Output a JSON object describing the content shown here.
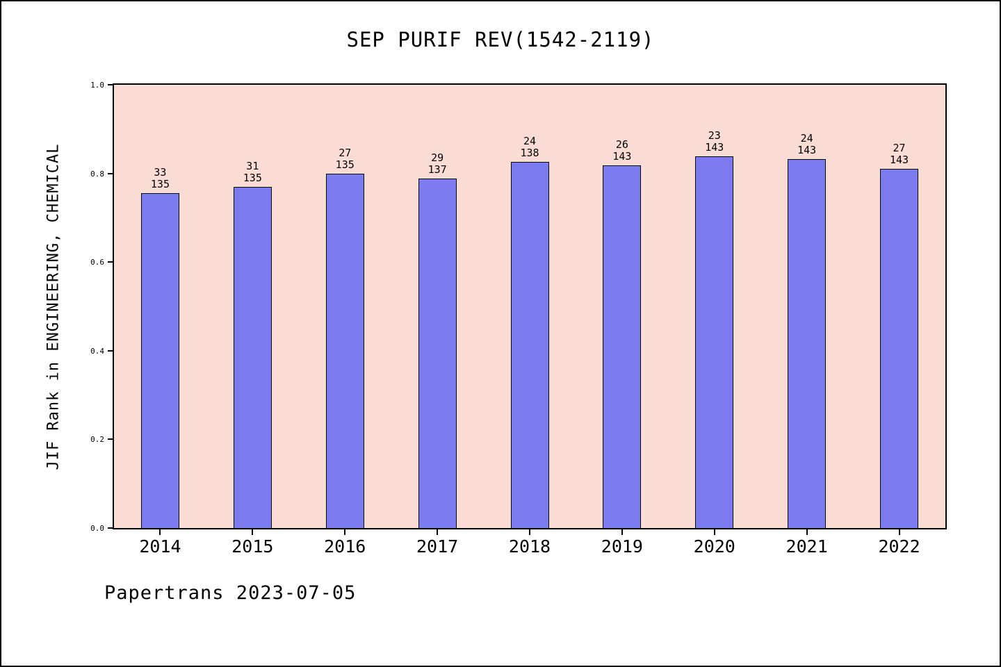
{
  "title": "SEP PURIF REV(1542-2119)",
  "footer": "Papertrans 2023-07-05",
  "chart_data": {
    "type": "bar",
    "title": "SEP PURIF REV(1542-2119)",
    "xlabel": "",
    "ylabel": "JIF Rank in ENGINEERING, CHEMICAL",
    "categories": [
      "2014",
      "2015",
      "2016",
      "2017",
      "2018",
      "2019",
      "2020",
      "2021",
      "2022"
    ],
    "values": [
      0.756,
      0.77,
      0.8,
      0.788,
      0.826,
      0.818,
      0.839,
      0.832,
      0.811
    ],
    "bar_labels": [
      {
        "rank": "33",
        "total": "135"
      },
      {
        "rank": "31",
        "total": "135"
      },
      {
        "rank": "27",
        "total": "135"
      },
      {
        "rank": "29",
        "total": "137"
      },
      {
        "rank": "24",
        "total": "138"
      },
      {
        "rank": "26",
        "total": "143"
      },
      {
        "rank": "23",
        "total": "143"
      },
      {
        "rank": "24",
        "total": "143"
      },
      {
        "rank": "27",
        "total": "143"
      }
    ],
    "ylim": [
      0.0,
      1.0
    ],
    "yticks": [
      "0.0",
      "0.2",
      "0.4",
      "0.6",
      "0.8",
      "1.0"
    ],
    "grid": false,
    "legend": null,
    "colors": {
      "bar_fill": "#7b7bef",
      "bar_edge": "#000000",
      "plot_bg": "#fbdcd5",
      "page_bg": "#ffffff"
    }
  }
}
